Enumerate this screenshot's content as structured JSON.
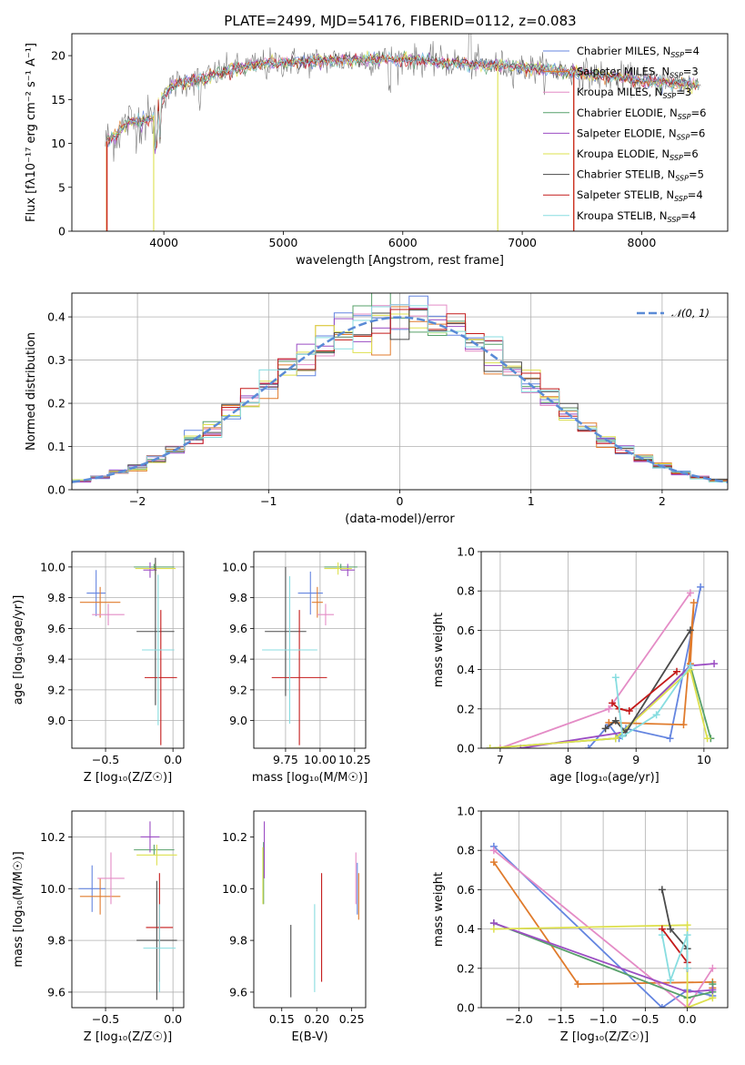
{
  "colors": {
    "series": [
      "#6485e0",
      "#e07b2c",
      "#e48cc6",
      "#57a06a",
      "#9b4dc3",
      "#dde04e",
      "#4a4a4a",
      "#c41a1a",
      "#88dde0"
    ],
    "normal_curve": "#5a8bd6",
    "grid": "#b0b0b0",
    "spectrum": "#7c7c7c"
  },
  "chart_data": [
    {
      "id": "spectrum",
      "type": "line",
      "title": "PLATE=2499, MJD=54176, FIBERID=0112, z=0.083",
      "xlabel": "wavelength [Angstrom, rest frame]",
      "ylabel": "Flux [fλ10⁻¹⁷ erg cm⁻² s⁻¹ A⁻¹]",
      "xlim": [
        3230,
        8720
      ],
      "ylim": [
        0,
        22.5
      ],
      "xticks": [
        4000,
        5000,
        6000,
        7000,
        8000
      ],
      "yticks": [
        0,
        5,
        10,
        15,
        20
      ],
      "grid": false,
      "legend_position": "right",
      "legend": [
        "Chabrier MILES, N_SSP=4",
        "Salpeter MILES, N_SSP=3",
        "Kroupa MILES, N_SSP=3",
        "Chabrier ELODIE, N_SSP=6",
        "Salpeter ELODIE, N_SSP=6",
        "Kroupa ELODIE, N_SSP=6",
        "Chabrier STELIB, N_SSP=5",
        "Salpeter STELIB, N_SSP=4",
        "Kroupa STELIB, N_SSP=4"
      ],
      "continuum": [
        [
          3500,
          10
        ],
        [
          3600,
          11
        ],
        [
          3700,
          12.5
        ],
        [
          3800,
          12.5
        ],
        [
          3900,
          12.8
        ],
        [
          4000,
          15.5
        ],
        [
          4100,
          16.8
        ],
        [
          4300,
          17.3
        ],
        [
          4500,
          18.2
        ],
        [
          4800,
          19.0
        ],
        [
          5000,
          19.2
        ],
        [
          5300,
          19.4
        ],
        [
          5600,
          19.5
        ],
        [
          6000,
          19.6
        ],
        [
          6300,
          19.3
        ],
        [
          6600,
          19.0
        ],
        [
          6800,
          18.9
        ],
        [
          7000,
          18.6
        ],
        [
          7300,
          18.3
        ],
        [
          7600,
          17.8
        ],
        [
          8000,
          17.2
        ],
        [
          8300,
          16.8
        ],
        [
          8500,
          16.6
        ]
      ]
    },
    {
      "id": "residuals",
      "type": "line",
      "title": "",
      "xlabel": "(data-model)/error",
      "ylabel": "Normed distribution",
      "xlim": [
        -2.5,
        2.5
      ],
      "ylim": [
        0,
        0.455
      ],
      "xticks": [
        -2,
        -1,
        0,
        1,
        2
      ],
      "yticks": [
        0.0,
        0.1,
        0.2,
        0.3,
        0.4
      ],
      "grid": true,
      "legend_position": "top-right",
      "legend": [
        "𝒩(0, 1)"
      ],
      "histogram": "step histograms of 9 fits following the standard normal"
    },
    {
      "id": "age_vs_z",
      "type": "scatter",
      "xlabel": "Z [log₁₀(Z/Z☉)]",
      "ylabel": "age  [log₁₀(age/yr)]",
      "xlim": [
        -0.75,
        0.08
      ],
      "ylim": [
        8.82,
        10.1
      ],
      "xticks": [
        -0.5,
        0.0
      ],
      "yticks": [
        9.0,
        9.2,
        9.4,
        9.6,
        9.8,
        10.0
      ],
      "grid": true,
      "points": [
        {
          "x": -0.57,
          "xerr": 0.07,
          "y": 9.83,
          "yerr": 0.15
        },
        {
          "x": -0.54,
          "xerr": 0.15,
          "y": 9.77,
          "yerr": 0.1
        },
        {
          "x": -0.48,
          "xerr": 0.12,
          "y": 9.69,
          "yerr": 0.07
        },
        {
          "x": -0.14,
          "xerr": 0.15,
          "y": 10.0,
          "yerr": 0.02
        },
        {
          "x": -0.17,
          "xerr": 0.05,
          "y": 9.98,
          "yerr": 0.05
        },
        {
          "x": -0.13,
          "xerr": 0.15,
          "y": 9.99,
          "yerr": 0.04
        },
        {
          "x": -0.13,
          "xerr": 0.14,
          "y": 9.58,
          "yerr": 0.48
        },
        {
          "x": -0.09,
          "xerr": 0.12,
          "y": 9.28,
          "yerr": 0.44
        },
        {
          "x": -0.11,
          "xerr": 0.12,
          "y": 9.46,
          "yerr": 0.49
        }
      ]
    },
    {
      "id": "age_vs_mass",
      "type": "scatter",
      "xlabel": "mass [log₁₀(M/M☉)]",
      "ylabel": "",
      "xlim": [
        9.52,
        10.33
      ],
      "ylim": [
        8.82,
        10.1
      ],
      "xticks": [
        9.75,
        10.0,
        10.25
      ],
      "yticks": [
        9.0,
        9.2,
        9.4,
        9.6,
        9.8,
        10.0
      ],
      "grid": true,
      "points": [
        {
          "x": 9.93,
          "xerr": 0.09,
          "y": 9.83,
          "yerr": 0.14
        },
        {
          "x": 9.98,
          "xerr": 0.04,
          "y": 9.77,
          "yerr": 0.1
        },
        {
          "x": 10.04,
          "xerr": 0.06,
          "y": 9.69,
          "yerr": 0.07
        },
        {
          "x": 10.15,
          "xerr": 0.12,
          "y": 10.0,
          "yerr": 0.02
        },
        {
          "x": 10.2,
          "xerr": 0.05,
          "y": 9.98,
          "yerr": 0.04
        },
        {
          "x": 10.13,
          "xerr": 0.1,
          "y": 9.99,
          "yerr": 0.04
        },
        {
          "x": 9.75,
          "xerr": 0.15,
          "y": 9.58,
          "yerr": 0.42
        },
        {
          "x": 9.85,
          "xerr": 0.2,
          "y": 9.28,
          "yerr": 0.44
        },
        {
          "x": 9.78,
          "xerr": 0.2,
          "y": 9.46,
          "yerr": 0.48
        }
      ]
    },
    {
      "id": "weight_vs_age",
      "type": "line",
      "xlabel": "age  [log₁₀(age/yr)]",
      "ylabel": "mass weight",
      "xlim": [
        6.72,
        10.35
      ],
      "ylim": [
        0,
        1.0
      ],
      "xticks": [
        7,
        8,
        9,
        10
      ],
      "yticks": [
        0.0,
        0.2,
        0.4,
        0.6,
        0.8,
        1.0
      ],
      "grid": true,
      "series": [
        {
          "x": [
            8.3,
            8.6,
            8.75,
            8.85,
            9.5,
            9.95
          ],
          "y": [
            0.0,
            0.12,
            0.05,
            0.1,
            0.05,
            0.82
          ]
        },
        {
          "x": [
            8.6,
            9.7,
            9.85,
            9.8
          ],
          "y": [
            0.13,
            0.12,
            0.74,
            0.43
          ]
        },
        {
          "x": [
            7.0,
            8.6,
            9.8
          ],
          "y": [
            0.0,
            0.2,
            0.79
          ]
        },
        {
          "x": [
            6.85,
            8.7,
            9.8,
            10.1
          ],
          "y": [
            0.0,
            0.05,
            0.42,
            0.05
          ]
        },
        {
          "x": [
            7.3,
            8.8,
            9.8,
            10.15
          ],
          "y": [
            0.0,
            0.08,
            0.42,
            0.43
          ]
        },
        {
          "x": [
            6.85,
            8.7,
            9.8,
            10.05
          ],
          "y": [
            0.0,
            0.05,
            0.4,
            0.05
          ]
        },
        {
          "x": [
            8.55,
            8.7,
            8.85,
            9.8
          ],
          "y": [
            0.1,
            0.14,
            0.08,
            0.6
          ]
        },
        {
          "x": [
            8.65,
            8.75,
            8.9,
            9.6
          ],
          "y": [
            0.23,
            0.2,
            0.19,
            0.39
          ]
        },
        {
          "x": [
            8.7,
            8.8,
            9.3,
            9.8
          ],
          "y": [
            0.36,
            0.06,
            0.17,
            0.42
          ]
        }
      ]
    },
    {
      "id": "mass_vs_z",
      "type": "scatter",
      "xlabel": "Z [log₁₀(Z/Z☉)]",
      "ylabel": "mass [log₁₀(M/M☉)]",
      "xlim": [
        -0.75,
        0.08
      ],
      "ylim": [
        9.54,
        10.3
      ],
      "xticks": [
        -0.5,
        0.0
      ],
      "yticks": [
        9.6,
        9.8,
        10.0,
        10.2
      ],
      "grid": true,
      "points": [
        {
          "x": -0.6,
          "xerr": 0.1,
          "y": 10.0,
          "yerr": 0.09
        },
        {
          "x": -0.54,
          "xerr": 0.15,
          "y": 9.97,
          "yerr": 0.07
        },
        {
          "x": -0.46,
          "xerr": 0.1,
          "y": 10.04,
          "yerr": 0.1
        },
        {
          "x": -0.14,
          "xerr": 0.15,
          "y": 10.15,
          "yerr": 0.02
        },
        {
          "x": -0.17,
          "xerr": 0.07,
          "y": 10.2,
          "yerr": 0.06
        },
        {
          "x": -0.12,
          "xerr": 0.15,
          "y": 10.13,
          "yerr": 0.04
        },
        {
          "x": -0.12,
          "xerr": 0.15,
          "y": 9.8,
          "yerr": 0.23
        },
        {
          "x": -0.1,
          "xerr": 0.1,
          "y": 9.85,
          "yerr": 0.21
        },
        {
          "x": -0.1,
          "xerr": 0.12,
          "y": 9.77,
          "yerr": 0.17
        }
      ]
    },
    {
      "id": "mass_vs_ebv",
      "type": "scatter",
      "xlabel": "E(B-V)",
      "ylabel": "",
      "xlim": [
        0.11,
        0.27
      ],
      "ylim": [
        9.54,
        10.3
      ],
      "xticks": [
        0.15,
        0.2,
        0.25
      ],
      "yticks": [
        9.6,
        9.8,
        10.0,
        10.2
      ],
      "grid": false,
      "points": [
        {
          "x": 0.258,
          "xerr": 0.0,
          "y": 10.0,
          "yerr": 0.1
        },
        {
          "x": 0.26,
          "xerr": 0.0,
          "y": 9.97,
          "yerr": 0.09
        },
        {
          "x": 0.256,
          "xerr": 0.0,
          "y": 10.04,
          "yerr": 0.1
        },
        {
          "x": 0.124,
          "xerr": 0.0,
          "y": 10.06,
          "yerr": 0.12
        },
        {
          "x": 0.125,
          "xerr": 0.0,
          "y": 10.15,
          "yerr": 0.11
        },
        {
          "x": 0.123,
          "xerr": 0.0,
          "y": 10.05,
          "yerr": 0.11
        },
        {
          "x": 0.163,
          "xerr": 0.0,
          "y": 9.72,
          "yerr": 0.14
        },
        {
          "x": 0.207,
          "xerr": 0.0,
          "y": 9.85,
          "yerr": 0.21
        },
        {
          "x": 0.197,
          "xerr": 0.0,
          "y": 9.77,
          "yerr": 0.17
        }
      ]
    },
    {
      "id": "weight_vs_z",
      "type": "line",
      "xlabel": "Z [log₁₀(Z/Z☉)]",
      "ylabel": "mass weight",
      "xlim": [
        -2.45,
        0.48
      ],
      "ylim": [
        0,
        1.0
      ],
      "xticks": [
        -2.0,
        -1.5,
        -1.0,
        -0.5,
        0.0
      ],
      "yticks": [
        0.0,
        0.2,
        0.4,
        0.6,
        0.8,
        1.0
      ],
      "grid": true,
      "series": [
        {
          "x": [
            -2.3,
            -0.3,
            0.0,
            0.3
          ],
          "y": [
            0.82,
            0.0,
            0.09,
            0.06
          ]
        },
        {
          "x": [
            -2.3,
            -1.3,
            0.3,
            0.3
          ],
          "y": [
            0.74,
            0.12,
            0.13,
            0.1
          ]
        },
        {
          "x": [
            -2.3,
            0.0,
            0.3
          ],
          "y": [
            0.8,
            0.0,
            0.2
          ]
        },
        {
          "x": [
            -2.3,
            0.0,
            0.3,
            0.3
          ],
          "y": [
            0.43,
            0.05,
            0.08,
            0.12
          ]
        },
        {
          "x": [
            -2.3,
            0.0,
            0.3
          ],
          "y": [
            0.43,
            0.08,
            0.09
          ]
        },
        {
          "x": [
            -2.3,
            0.0,
            0.0,
            0.3
          ],
          "y": [
            0.4,
            0.42,
            0.0,
            0.05
          ]
        },
        {
          "x": [
            -0.3,
            -0.2,
            0.0,
            0.0
          ],
          "y": [
            0.6,
            0.4,
            0.3,
            0.2
          ]
        },
        {
          "x": [
            -0.3,
            0.0,
            0.0
          ],
          "y": [
            0.4,
            0.23,
            0.2
          ]
        },
        {
          "x": [
            -0.3,
            -0.2,
            0.0,
            0.0
          ],
          "y": [
            0.37,
            0.14,
            0.37,
            0.2
          ]
        }
      ]
    }
  ]
}
